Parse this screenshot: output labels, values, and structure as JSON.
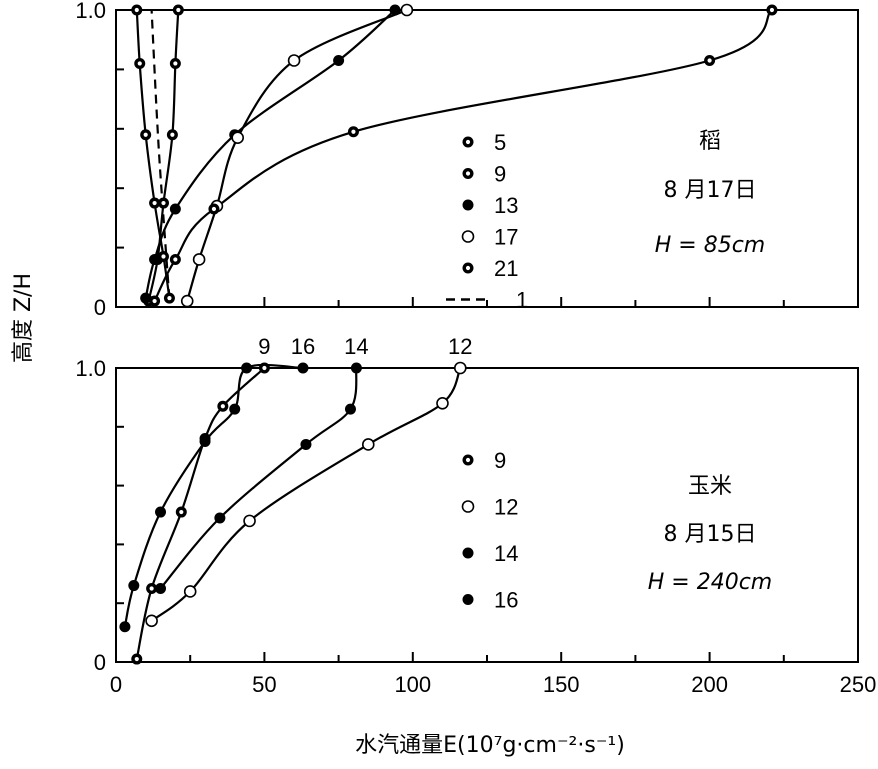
{
  "chart_data": [
    {
      "type": "line",
      "xlabel": "水汽通量E(10⁷g·cm⁻²·s⁻¹)",
      "ylabel": "高度 Z/H",
      "xlim": [
        0,
        250
      ],
      "ylim": [
        0,
        1.0
      ],
      "yticks": [
        "0",
        "1.0"
      ],
      "reference_line": {
        "y": 1.0,
        "style": "dashed"
      },
      "annotations": [
        "稻",
        "8 月17日",
        "H = 85cm"
      ],
      "legend_position": "center-right",
      "series": [
        {
          "name": "5",
          "marker": "dotted-circle",
          "line": "solid",
          "points": [
            [
              11,
              0.02
            ],
            [
              14,
              0.16
            ],
            [
              16,
              0.35
            ],
            [
              19,
              0.58
            ],
            [
              20,
              0.82
            ],
            [
              21,
              1.0
            ]
          ]
        },
        {
          "name": "9",
          "marker": "dotted-circle",
          "line": "solid",
          "points": [
            [
              18,
              0.03
            ],
            [
              16,
              0.17
            ],
            [
              13,
              0.35
            ],
            [
              10,
              0.58
            ],
            [
              8,
              0.82
            ],
            [
              7,
              1.0
            ]
          ]
        },
        {
          "name": "13",
          "marker": "filled-circle",
          "line": "solid",
          "points": [
            [
              10,
              0.03
            ],
            [
              13,
              0.16
            ],
            [
              20,
              0.33
            ],
            [
              40,
              0.58
            ],
            [
              75,
              0.83
            ],
            [
              94,
              1.0
            ]
          ]
        },
        {
          "name": "17",
          "marker": "open-circle",
          "line": "solid",
          "points": [
            [
              24,
              0.02
            ],
            [
              28,
              0.16
            ],
            [
              34,
              0.34
            ],
            [
              41,
              0.57
            ],
            [
              60,
              0.83
            ],
            [
              98,
              1.0
            ]
          ]
        },
        {
          "name": "21",
          "marker": "dotted-circle",
          "line": "solid",
          "points": [
            [
              13,
              0.02
            ],
            [
              20,
              0.16
            ],
            [
              33,
              0.33
            ],
            [
              80,
              0.59
            ],
            [
              200,
              0.83
            ],
            [
              221,
              1.0
            ]
          ]
        },
        {
          "name": "1",
          "marker": "none",
          "line": "dashed",
          "points": [
            [
              18,
              0.03
            ],
            [
              16,
              0.3
            ],
            [
              14,
              0.6
            ],
            [
              12,
              1.0
            ]
          ]
        }
      ]
    },
    {
      "type": "line",
      "xlabel": "水汽通量E(10⁷g·cm⁻²·s⁻¹)",
      "ylabel": "高度 Z/H",
      "xlim": [
        0,
        250
      ],
      "ylim": [
        0,
        1.0
      ],
      "xticks": [
        "0",
        "50",
        "100",
        "150",
        "200",
        "250"
      ],
      "yticks": [
        "0",
        "1.0"
      ],
      "reference_line": {
        "y": 1.0,
        "style": "dashed"
      },
      "annotations": [
        "玉米",
        "8 月15日",
        "H = 240cm"
      ],
      "legend_position": "center-right",
      "series": [
        {
          "name": "9",
          "marker": "dotted-circle",
          "line": "solid",
          "points": [
            [
              7,
              0.01
            ],
            [
              12,
              0.25
            ],
            [
              22,
              0.51
            ],
            [
              30,
              0.76
            ],
            [
              36,
              0.87
            ],
            [
              50,
              1.0
            ]
          ]
        },
        {
          "name": "12",
          "marker": "open-circle",
          "line": "solid",
          "points": [
            [
              12,
              0.14
            ],
            [
              25,
              0.24
            ],
            [
              45,
              0.48
            ],
            [
              85,
              0.74
            ],
            [
              110,
              0.88
            ],
            [
              116,
              1.0
            ]
          ]
        },
        {
          "name": "14",
          "marker": "filled-circle",
          "line": "solid",
          "points": [
            [
              15,
              0.25
            ],
            [
              35,
              0.49
            ],
            [
              64,
              0.74
            ],
            [
              79,
              0.86
            ],
            [
              81,
              1.0
            ]
          ]
        },
        {
          "name": "16",
          "marker": "filled-circle",
          "line": "solid",
          "points": [
            [
              3,
              0.12
            ],
            [
              6,
              0.26
            ],
            [
              15,
              0.51
            ],
            [
              30,
              0.75
            ],
            [
              40,
              0.86
            ],
            [
              44,
              1.0
            ],
            [
              63,
              1.0
            ]
          ]
        }
      ],
      "curve_labels": [
        {
          "series": "9",
          "text": "9"
        },
        {
          "series": "16",
          "text": "16"
        },
        {
          "series": "14",
          "text": "14"
        },
        {
          "series": "12",
          "text": "12"
        }
      ]
    }
  ]
}
